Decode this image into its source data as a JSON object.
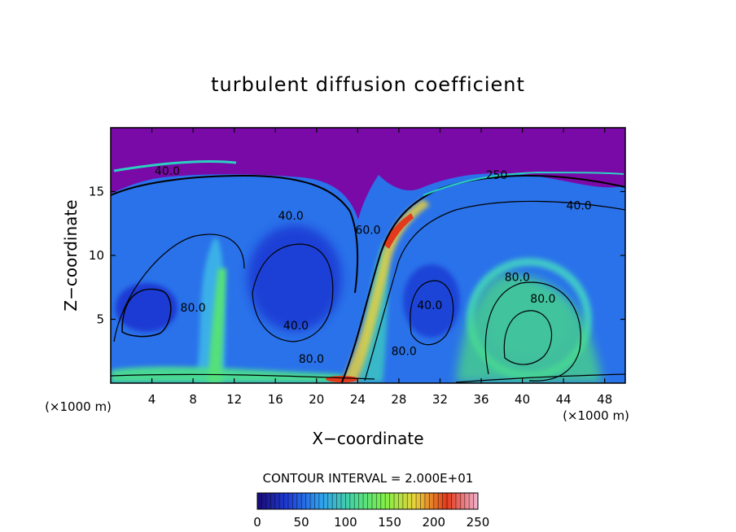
{
  "chart_data": {
    "type": "heatmap",
    "title": "turbulent diffusion coefficient",
    "xlabel": "X−coordinate",
    "ylabel": "Z−coordinate",
    "x_unit_left": "(×1000 m)",
    "x_unit_right": "(×1000 m)",
    "xlim": [
      0,
      50
    ],
    "ylim": [
      0,
      20
    ],
    "x_ticks": [
      4,
      8,
      12,
      16,
      20,
      24,
      28,
      32,
      36,
      40,
      44,
      48
    ],
    "y_ticks": [
      5,
      10,
      15
    ],
    "contour_interval_text": "CONTOUR INTERVAL = 2.000E+01",
    "contour_interval": 20,
    "contour_labels": [
      {
        "text": "40.0",
        "x": 5.5,
        "y": 16.3
      },
      {
        "text": "40.0",
        "x": 17.5,
        "y": 12.8
      },
      {
        "text": "40.0",
        "x": 18.0,
        "y": 4.2
      },
      {
        "text": "80.0",
        "x": 8.0,
        "y": 5.6
      },
      {
        "text": "80.0",
        "x": 19.5,
        "y": 1.6
      },
      {
        "text": "60.0",
        "x": 25.0,
        "y": 11.7
      },
      {
        "text": "40.0",
        "x": 31.0,
        "y": 5.8
      },
      {
        "text": "80.0",
        "x": 39.5,
        "y": 8.0
      },
      {
        "text": "80.0",
        "x": 42.0,
        "y": 6.3
      },
      {
        "text": "40.0",
        "x": 45.5,
        "y": 13.6
      },
      {
        "text": "80.0",
        "x": 28.5,
        "y": 2.2
      },
      {
        "text": "250",
        "x": 37.5,
        "y": 16.0
      }
    ],
    "colorbar": {
      "min": 0,
      "max": 250,
      "ticks": [
        0,
        50,
        100,
        150,
        200,
        250
      ],
      "colors": [
        "#1a0a78",
        "#1f3fd8",
        "#2f9ef0",
        "#46d6a0",
        "#7cf04a",
        "#e8d23a",
        "#e23a1a",
        "#f0b0d0"
      ]
    },
    "top_layer_color": "#7a0aa8",
    "grid": false
  }
}
